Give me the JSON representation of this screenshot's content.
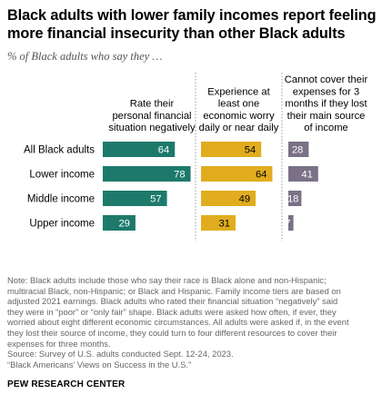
{
  "title": "Black adults with lower family incomes report feeling more financial insecurity than other Black adults",
  "subtitle": "% of Black adults who say they …",
  "colors": {
    "green": "#1d7a6b",
    "gold": "#e1ad1e",
    "purple": "#7a7186"
  },
  "chart_data": {
    "type": "bar",
    "orientation": "horizontal",
    "categories": [
      "All Black adults",
      "Lower income",
      "Middle income",
      "Upper income"
    ],
    "series": [
      {
        "name": "Rate their personal financial situation negatively",
        "name_lines": [
          "Rate their",
          "personal financial",
          "situation negatively"
        ],
        "values": [
          64,
          78,
          57,
          29
        ]
      },
      {
        "name": "Experience at least one economic worry daily or near daily",
        "name_lines": [
          "Experience at",
          "least one",
          "economic worry",
          "daily or near daily"
        ],
        "values": [
          54,
          64,
          49,
          31
        ]
      },
      {
        "name": "Cannot cover their expenses for 3 months if they lost their main source of income",
        "name_lines": [
          "Cannot cover their",
          "expenses for 3",
          "months if they lost",
          "their main source",
          "of income"
        ],
        "values": [
          28,
          41,
          18,
          7
        ]
      }
    ],
    "xlim": [
      0,
      100
    ],
    "grid": false,
    "legend": "none"
  },
  "notes": [
    "Note: Black adults include those who say their race is Black alone and non-Hispanic;",
    "multiracial Black, non-Hispanic; or Black and Hispanic. Family income tiers are based on",
    "adjusted 2021 earnings. Black adults who rated their financial situation “negatively” said",
    "they were in “poor” or “only fair” shape. Black adults were asked how often, if ever, they",
    "worried about eight different economic circumstances. All adults were asked if, in the event",
    "they lost their source of income, they could turn to four different resources to cover their",
    "expenses for three months.",
    "Source: Survey of U.S. adults conducted Sept. 12-24, 2023.",
    "“Black Americans’ Views on Success in the U.S.”"
  ],
  "brand": "PEW RESEARCH CENTER"
}
